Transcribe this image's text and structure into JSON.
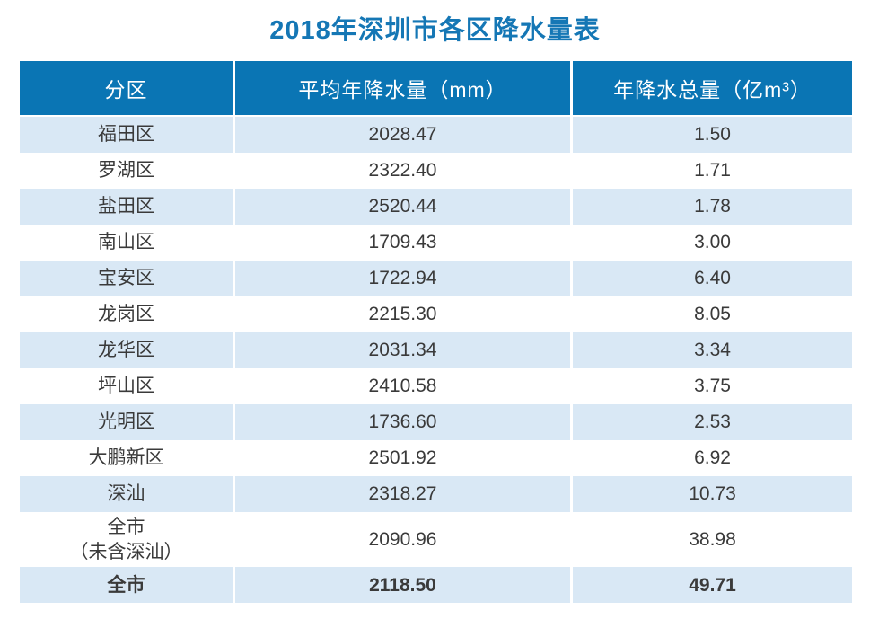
{
  "title": "2018年深圳市各区降水量表",
  "colors": {
    "title_color": "#1577b5",
    "header_bg": "#0a75b4",
    "header_text": "#ffffff",
    "shaded_row_bg": "#d9e8f5",
    "body_text": "#3a3a3a"
  },
  "table": {
    "columns": [
      "分区",
      "平均年降水量（mm）",
      "年降水总量（亿m³）"
    ],
    "rows": [
      {
        "district": "福田区",
        "avg_rainfall_mm": "2028.47",
        "total_rainfall_yi_m3": "1.50"
      },
      {
        "district": "罗湖区",
        "avg_rainfall_mm": "2322.40",
        "total_rainfall_yi_m3": "1.71"
      },
      {
        "district": "盐田区",
        "avg_rainfall_mm": "2520.44",
        "total_rainfall_yi_m3": "1.78"
      },
      {
        "district": "南山区",
        "avg_rainfall_mm": "1709.43",
        "total_rainfall_yi_m3": "3.00"
      },
      {
        "district": "宝安区",
        "avg_rainfall_mm": "1722.94",
        "total_rainfall_yi_m3": "6.40"
      },
      {
        "district": "龙岗区",
        "avg_rainfall_mm": "2215.30",
        "total_rainfall_yi_m3": "8.05"
      },
      {
        "district": "龙华区",
        "avg_rainfall_mm": "2031.34",
        "total_rainfall_yi_m3": "3.34"
      },
      {
        "district": "坪山区",
        "avg_rainfall_mm": "2410.58",
        "total_rainfall_yi_m3": "3.75"
      },
      {
        "district": "光明区",
        "avg_rainfall_mm": "1736.60",
        "total_rainfall_yi_m3": "2.53"
      },
      {
        "district": "大鹏新区",
        "avg_rainfall_mm": "2501.92",
        "total_rainfall_yi_m3": "6.92"
      },
      {
        "district": "深汕",
        "avg_rainfall_mm": "2318.27",
        "total_rainfall_yi_m3": "10.73"
      },
      {
        "district": "全市\n（未含深汕）",
        "avg_rainfall_mm": "2090.96",
        "total_rainfall_yi_m3": "38.98"
      },
      {
        "district": "全市",
        "avg_rainfall_mm": "2118.50",
        "total_rainfall_yi_m3": "49.71",
        "is_total": true
      }
    ]
  },
  "chart_data": {
    "type": "table",
    "title": "2018年深圳市各区降水量表",
    "columns": [
      "分区",
      "平均年降水量（mm）",
      "年降水总量（亿m³）"
    ],
    "rows": [
      [
        "福田区",
        2028.47,
        1.5
      ],
      [
        "罗湖区",
        2322.4,
        1.71
      ],
      [
        "盐田区",
        2520.44,
        1.78
      ],
      [
        "南山区",
        1709.43,
        3.0
      ],
      [
        "宝安区",
        1722.94,
        6.4
      ],
      [
        "龙岗区",
        2215.3,
        8.05
      ],
      [
        "龙华区",
        2031.34,
        3.34
      ],
      [
        "坪山区",
        2410.58,
        3.75
      ],
      [
        "光明区",
        1736.6,
        2.53
      ],
      [
        "大鹏新区",
        2501.92,
        6.92
      ],
      [
        "深汕",
        2318.27,
        10.73
      ],
      [
        "全市（未含深汕）",
        2090.96,
        38.98
      ],
      [
        "全市",
        2118.5,
        49.71
      ]
    ]
  }
}
